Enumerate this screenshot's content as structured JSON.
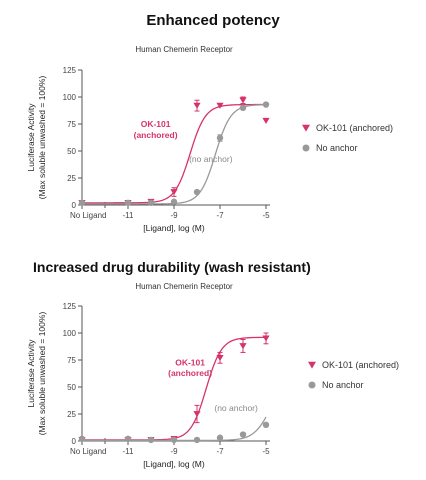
{
  "headings": {
    "top": "Enhanced potency",
    "bottom": "Increased drug durability (wash resistant)"
  },
  "colors": {
    "anchored": "#d6336c",
    "no_anchor": "#999999",
    "axis": "#555555"
  },
  "chart_data": [
    {
      "type": "scatter",
      "title": "Human Chemerin Receptor",
      "xlabel": "[Ligand], log (M)",
      "ylabel": "Luciferase Activity",
      "ylabel2": "(Max soluble unwashed = 100%)",
      "xlim": [
        -13,
        -5
      ],
      "ylim": [
        0,
        125
      ],
      "xticks": [
        {
          "value": -13,
          "label": "No Ligand"
        },
        {
          "value": -11,
          "label": "-11"
        },
        {
          "value": -9,
          "label": "-9"
        },
        {
          "value": -7,
          "label": "-7"
        },
        {
          "value": -5,
          "label": "-5"
        }
      ],
      "yticks": [
        0,
        25,
        50,
        75,
        100,
        125
      ],
      "legend_position": "right",
      "annotations": [
        {
          "text": "OK-101",
          "x": -9.8,
          "y": 72,
          "series": "anchored"
        },
        {
          "text": "(anchored)",
          "x": -9.8,
          "y": 62,
          "series": "anchored"
        },
        {
          "text": "(no anchor)",
          "x": -7.4,
          "y": 40,
          "series": "no_anchor"
        }
      ],
      "series": [
        {
          "key": "anchored",
          "name": "OK-101 (anchored)",
          "marker": "triangle-down",
          "ec50": -8.3,
          "hill": 1.3,
          "bottom": 2,
          "top": 93,
          "points": [
            {
              "x": -13,
              "y": 2,
              "err": 0
            },
            {
              "x": -11,
              "y": 2,
              "err": 0
            },
            {
              "x": -10,
              "y": 3,
              "err": 0
            },
            {
              "x": -9,
              "y": 12,
              "err": 4
            },
            {
              "x": -8,
              "y": 92,
              "err": 5
            },
            {
              "x": -7,
              "y": 92,
              "err": 0
            },
            {
              "x": -6,
              "y": 97,
              "err": 3
            },
            {
              "x": -5,
              "y": 78,
              "err": 0
            }
          ]
        },
        {
          "key": "no_anchor",
          "name": "No anchor",
          "marker": "circle",
          "ec50": -7.2,
          "hill": 1.3,
          "bottom": 1,
          "top": 93,
          "points": [
            {
              "x": -13,
              "y": 2,
              "err": 0
            },
            {
              "x": -11,
              "y": 2,
              "err": 0
            },
            {
              "x": -10,
              "y": 2,
              "err": 0
            },
            {
              "x": -9,
              "y": 3,
              "err": 0
            },
            {
              "x": -8,
              "y": 12,
              "err": 0
            },
            {
              "x": -7,
              "y": 62,
              "err": 3
            },
            {
              "x": -6,
              "y": 90,
              "err": 0
            },
            {
              "x": -5,
              "y": 93,
              "err": 0
            }
          ]
        }
      ]
    },
    {
      "type": "scatter",
      "title": "Human Chemerin Receptor",
      "xlabel": "[Ligand], log (M)",
      "ylabel": "Luciferase Activity",
      "ylabel2": "(Max soluble unwashed = 100%)",
      "xlim": [
        -13,
        -5
      ],
      "ylim": [
        0,
        125
      ],
      "xticks": [
        {
          "value": -13,
          "label": "No Ligand"
        },
        {
          "value": -11,
          "label": "-11"
        },
        {
          "value": -9,
          "label": "-9"
        },
        {
          "value": -7,
          "label": "-7"
        },
        {
          "value": -5,
          "label": "-5"
        }
      ],
      "yticks": [
        0,
        25,
        50,
        75,
        100,
        125
      ],
      "legend_position": "right",
      "annotations": [
        {
          "text": "OK-101",
          "x": -8.3,
          "y": 70,
          "series": "anchored"
        },
        {
          "text": "(anchored)",
          "x": -8.3,
          "y": 60,
          "series": "anchored"
        },
        {
          "text": "(no anchor)",
          "x": -6.3,
          "y": 28,
          "series": "no_anchor"
        }
      ],
      "series": [
        {
          "key": "anchored",
          "name": "OK-101 (anchored)",
          "marker": "triangle-down",
          "ec50": -7.6,
          "hill": 1.3,
          "bottom": 1,
          "top": 96,
          "points": [
            {
              "x": -13,
              "y": 1,
              "err": 0
            },
            {
              "x": -11,
              "y": 1,
              "err": 0
            },
            {
              "x": -10,
              "y": 1,
              "err": 0
            },
            {
              "x": -9,
              "y": 2,
              "err": 0
            },
            {
              "x": -8,
              "y": 25,
              "err": 8
            },
            {
              "x": -7,
              "y": 77,
              "err": 5
            },
            {
              "x": -6,
              "y": 88,
              "err": 6
            },
            {
              "x": -5,
              "y": 95,
              "err": 5
            }
          ]
        },
        {
          "key": "no_anchor",
          "name": "No anchor",
          "marker": "circle",
          "ec50": -4.8,
          "hill": 1.2,
          "bottom": 0.5,
          "top": 60,
          "points": [
            {
              "x": -13,
              "y": 2,
              "err": 0
            },
            {
              "x": -11,
              "y": 2,
              "err": 0
            },
            {
              "x": -10,
              "y": 1,
              "err": 0
            },
            {
              "x": -9,
              "y": 1,
              "err": 0
            },
            {
              "x": -8,
              "y": 1,
              "err": 0
            },
            {
              "x": -7,
              "y": 3,
              "err": 0
            },
            {
              "x": -6,
              "y": 6,
              "err": 0
            },
            {
              "x": -5,
              "y": 15,
              "err": 0
            }
          ]
        }
      ]
    }
  ]
}
